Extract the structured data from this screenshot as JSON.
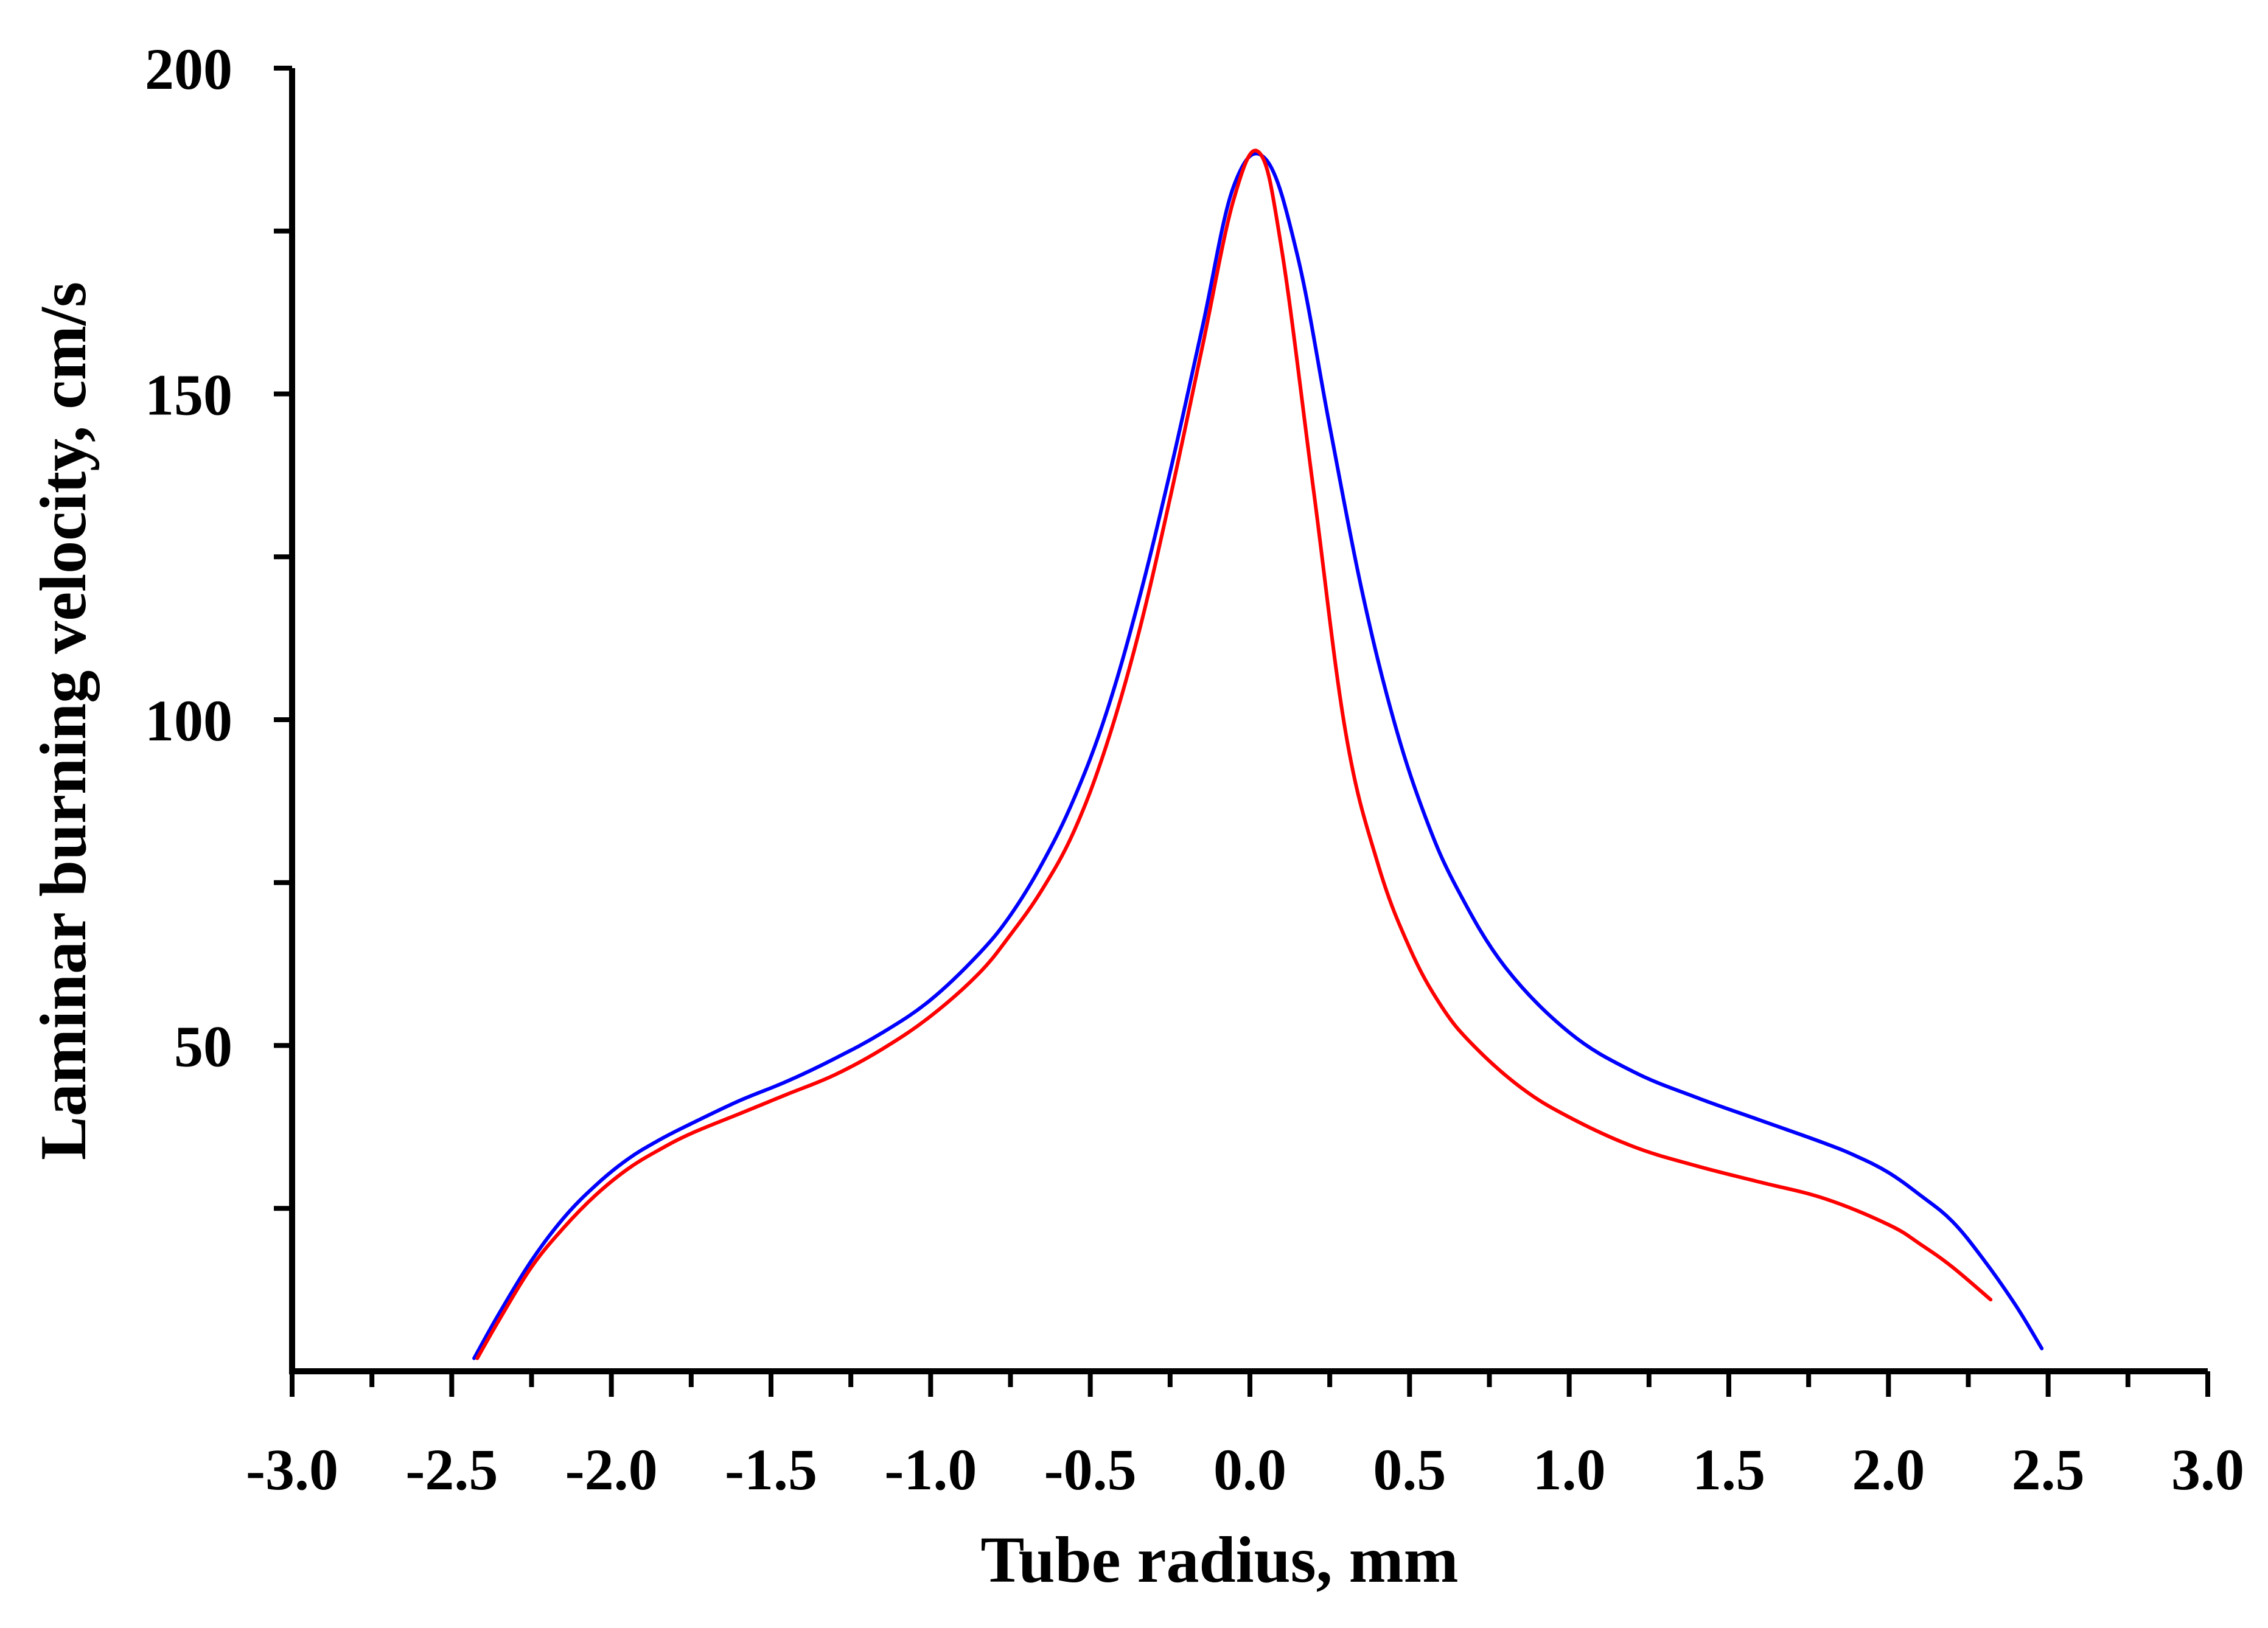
{
  "chart_data": {
    "type": "line",
    "title": "",
    "xlabel": "Tube radius, mm",
    "ylabel": "Laminar burning velocity, cm/s",
    "xlim": [
      -3.0,
      3.0
    ],
    "ylim": [
      0,
      200
    ],
    "x_ticks": [
      "-3.0",
      "-2.5",
      "-2.0",
      "-1.5",
      "-1.0",
      "-0.5",
      "0.0",
      "0.5",
      "1.0",
      "1.5",
      "2.0",
      "2.5",
      "3.0"
    ],
    "x_minor_step": 0.25,
    "y_ticks": [
      "50",
      "100",
      "150",
      "200"
    ],
    "y_minor_step": 25,
    "grid": false,
    "legend": "none",
    "series": [
      {
        "color": "#0000ff",
        "x": [
          -2.43,
          -2.35,
          -2.25,
          -2.15,
          -2.05,
          -1.95,
          -1.85,
          -1.75,
          -1.6,
          -1.45,
          -1.3,
          -1.15,
          -1.0,
          -0.85,
          -0.75,
          -0.65,
          -0.55,
          -0.45,
          -0.35,
          -0.25,
          -0.15,
          -0.05,
          0.05,
          0.15,
          0.25,
          0.35,
          0.45,
          0.55,
          0.65,
          0.8,
          1.0,
          1.2,
          1.4,
          1.6,
          1.8,
          1.9,
          2.0,
          2.1,
          2.2,
          2.3,
          2.4,
          2.48
        ],
        "y": [
          2,
          9,
          17,
          23.5,
          28.5,
          32.5,
          35.5,
          38,
          41.5,
          44.5,
          48,
          52,
          57,
          64,
          70,
          78,
          88,
          101,
          118,
          138,
          160,
          182,
          186,
          171,
          145,
          120,
          100,
          85,
          74,
          62,
          52,
          46,
          42,
          38.5,
          35,
          33,
          30.5,
          27,
          23,
          17,
          10,
          3.5
        ]
      },
      {
        "color": "#ff0000",
        "x": [
          -2.42,
          -2.35,
          -2.25,
          -2.15,
          -2.05,
          -1.95,
          -1.85,
          -1.75,
          -1.6,
          -1.45,
          -1.3,
          -1.15,
          -1.0,
          -0.85,
          -0.75,
          -0.65,
          -0.55,
          -0.45,
          -0.35,
          -0.25,
          -0.15,
          -0.05,
          0.03,
          0.1,
          0.2,
          0.3,
          0.4,
          0.5,
          0.6,
          0.7,
          0.85,
          1.0,
          1.2,
          1.4,
          1.6,
          1.8,
          2.0,
          2.1,
          2.2,
          2.32
        ],
        "y": [
          2,
          8,
          16,
          22,
          27,
          31,
          34,
          36.5,
          39.5,
          42.5,
          45.5,
          49.5,
          54.5,
          61,
          67,
          74,
          83,
          96,
          113,
          134,
          157,
          180,
          187,
          172,
          135,
          98,
          78,
          65,
          56,
          50,
          43.5,
          39,
          34.5,
          31.5,
          29,
          26.5,
          22.5,
          19.5,
          16,
          11
        ]
      }
    ]
  }
}
